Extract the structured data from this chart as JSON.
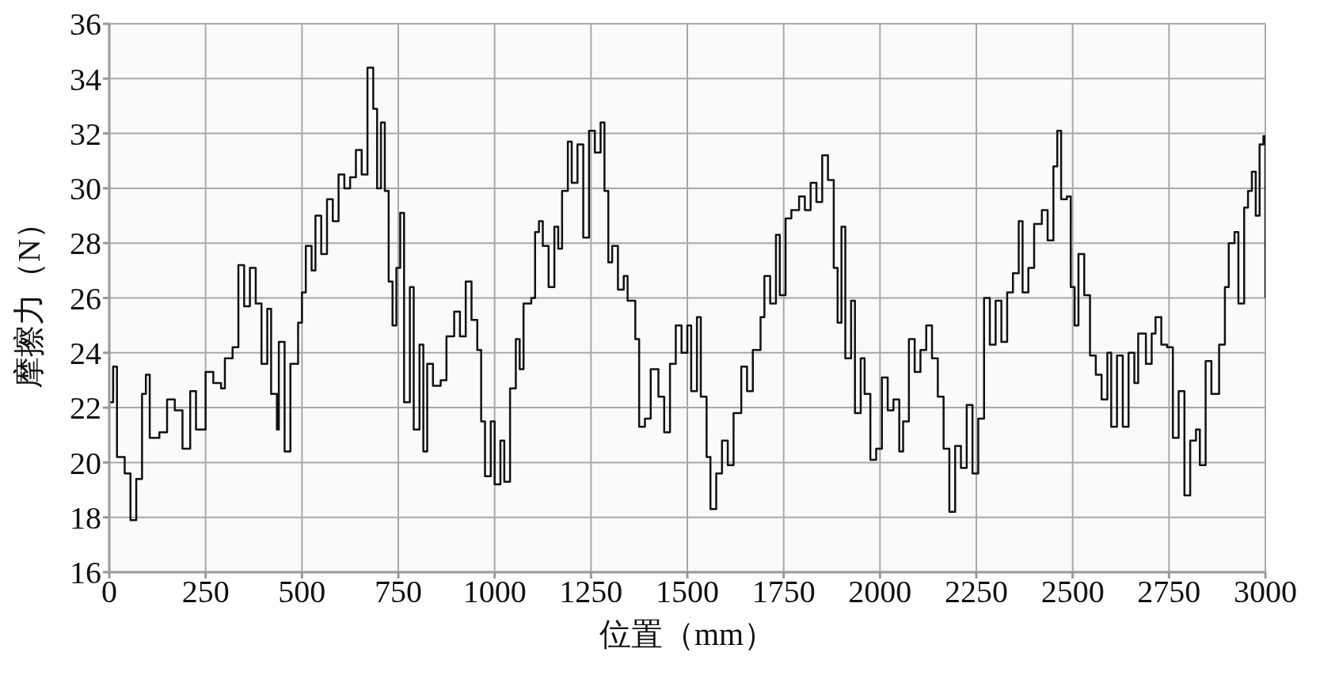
{
  "chart_data": {
    "type": "step",
    "xlabel": "位置（mm）",
    "ylabel": "摩擦力（N）",
    "x": [
      0,
      10,
      20,
      40,
      55,
      70,
      85,
      95,
      105,
      130,
      150,
      170,
      190,
      210,
      225,
      250,
      270,
      290,
      300,
      320,
      335,
      350,
      365,
      380,
      395,
      410,
      420,
      435,
      440,
      455,
      470,
      490,
      500,
      510,
      525,
      535,
      550,
      565,
      580,
      595,
      610,
      625,
      640,
      655,
      670,
      685,
      695,
      705,
      715,
      725,
      735,
      745,
      755,
      765,
      780,
      790,
      805,
      815,
      825,
      840,
      860,
      875,
      895,
      910,
      925,
      940,
      955,
      965,
      975,
      990,
      1000,
      1015,
      1025,
      1040,
      1055,
      1065,
      1075,
      1095,
      1105,
      1115,
      1125,
      1140,
      1155,
      1165,
      1175,
      1190,
      1200,
      1215,
      1230,
      1245,
      1260,
      1275,
      1285,
      1295,
      1305,
      1320,
      1335,
      1345,
      1365,
      1375,
      1390,
      1405,
      1425,
      1440,
      1455,
      1470,
      1485,
      1500,
      1510,
      1525,
      1535,
      1550,
      1560,
      1575,
      1590,
      1605,
      1620,
      1640,
      1655,
      1670,
      1690,
      1700,
      1715,
      1730,
      1740,
      1755,
      1770,
      1790,
      1805,
      1820,
      1835,
      1850,
      1865,
      1880,
      1890,
      1900,
      1910,
      1925,
      1935,
      1950,
      1960,
      1975,
      1990,
      2005,
      2020,
      2035,
      2050,
      2060,
      2075,
      2090,
      2105,
      2120,
      2135,
      2150,
      2165,
      2180,
      2195,
      2210,
      2225,
      2240,
      2255,
      2270,
      2285,
      2300,
      2315,
      2330,
      2345,
      2360,
      2370,
      2385,
      2400,
      2420,
      2435,
      2450,
      2460,
      2470,
      2485,
      2495,
      2505,
      2515,
      2530,
      2545,
      2560,
      2575,
      2590,
      2600,
      2615,
      2630,
      2645,
      2660,
      2670,
      2690,
      2705,
      2715,
      2730,
      2745,
      2760,
      2775,
      2790,
      2805,
      2820,
      2830,
      2845,
      2860,
      2880,
      2895,
      2905,
      2920,
      2930,
      2945,
      2955,
      2965,
      2975,
      2985,
      2995,
      3000
    ],
    "series": [
      {
        "color": "#111111",
        "values": [
          22.2,
          23.5,
          20.2,
          19.6,
          17.9,
          19.4,
          22.5,
          23.2,
          20.9,
          21.1,
          22.3,
          21.9,
          20.5,
          22.6,
          21.2,
          23.3,
          22.9,
          22.7,
          23.8,
          24.2,
          27.2,
          25.7,
          27.1,
          25.8,
          23.6,
          25.6,
          22.5,
          21.2,
          24.4,
          20.4,
          23.6,
          25.1,
          26.2,
          27.9,
          27,
          29,
          27.6,
          29.6,
          28.8,
          30.5,
          30,
          30.4,
          31.4,
          30.5,
          34.4,
          32.9,
          30,
          32.4,
          29.9,
          26.6,
          25,
          27.1,
          29.1,
          22.2,
          26.4,
          21.2,
          24.3,
          20.4,
          23.6,
          22.8,
          23,
          24.6,
          25.5,
          24.6,
          26.6,
          25.2,
          24.1,
          21.5,
          19.5,
          21.5,
          19.2,
          20.8,
          19.3,
          22.7,
          24.5,
          23.4,
          25.8,
          26,
          28.4,
          28.8,
          27.9,
          26.4,
          28.6,
          27.8,
          29.9,
          31.7,
          30.2,
          31.6,
          28.2,
          32.1,
          31.3,
          32.4,
          29.9,
          27.3,
          27.9,
          26.3,
          26.8,
          25.9,
          24.5,
          21.3,
          21.6,
          23.4,
          22.4,
          21.1,
          23.6,
          25,
          24,
          25,
          22.6,
          25.3,
          22.4,
          20.2,
          18.3,
          19.6,
          20.8,
          19.9,
          21.8,
          23.5,
          22.6,
          24.1,
          25.3,
          26.8,
          25.8,
          28.3,
          26.1,
          28.9,
          29.2,
          29.7,
          29.2,
          30.2,
          29.5,
          31.2,
          30.3,
          27.1,
          25.1,
          28.6,
          23.8,
          25.9,
          21.8,
          23.8,
          22.5,
          20.1,
          20.5,
          23.1,
          21.9,
          22.3,
          20.4,
          21.5,
          24.5,
          23.3,
          24.1,
          25,
          23.8,
          22.4,
          20.5,
          18.2,
          20.6,
          19.8,
          22.1,
          19.6,
          21.6,
          26,
          24.3,
          25.9,
          24.4,
          26.2,
          26.9,
          28.8,
          26.2,
          27.1,
          28.7,
          29.2,
          28.1,
          30.8,
          32.1,
          29.6,
          29.7,
          26.4,
          25,
          27.6,
          26.1,
          23.9,
          23.2,
          22.3,
          24,
          21.3,
          23.9,
          21.3,
          24,
          22.9,
          24.7,
          23.6,
          24.7,
          25.3,
          24.3,
          24.2,
          20.9,
          22.6,
          18.8,
          20.8,
          21.2,
          19.9,
          23.7,
          22.5,
          24.3,
          26.4,
          28,
          28.4,
          25.8,
          29.3,
          29.9,
          30.6,
          29,
          31.6,
          31.9,
          26
        ]
      }
    ],
    "xlim": [
      0,
      3000
    ],
    "xticks": [
      0,
      250,
      500,
      750,
      1000,
      1250,
      1500,
      1750,
      2000,
      2250,
      2500,
      2750,
      3000
    ],
    "ylim": [
      16,
      36
    ],
    "yticks": [
      16,
      18,
      20,
      22,
      24,
      26,
      28,
      30,
      32,
      34,
      36
    ],
    "grid": true,
    "marker": "none",
    "line_style": "solid",
    "legend": false
  }
}
